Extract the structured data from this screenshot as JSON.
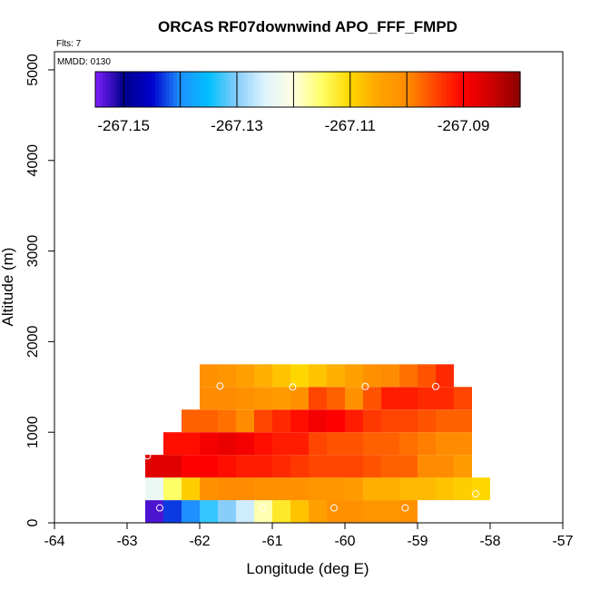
{
  "chart_data": {
    "type": "heatmap",
    "title": "ORCAS RF07downwind APO_FFF_FMPD",
    "note_flights": "Flts: 7",
    "note_mmdd": "MMDD: 0130",
    "xlabel": "Longitude (deg E)",
    "ylabel": "Altitude (m)",
    "xlim": [
      -64,
      -57
    ],
    "ylim": [
      0,
      5200
    ],
    "x_ticks": [
      -64,
      -63,
      -62,
      -61,
      -60,
      -59,
      -58,
      -57
    ],
    "x_tick_labels": [
      "-64",
      "-63",
      "-62",
      "-61",
      "-60",
      "-59",
      "-58",
      "-57"
    ],
    "y_ticks": [
      0,
      1000,
      2000,
      3000,
      4000,
      5000
    ],
    "y_tick_labels": [
      "0",
      "1000",
      "2000",
      "3000",
      "4000",
      "5000"
    ],
    "grid": false,
    "colorbar": {
      "min": -267.155,
      "max": -267.08,
      "ticks": [
        -267.15,
        -267.13,
        -267.11,
        -267.09
      ],
      "tick_labels": [
        "-267.15",
        "-267.13",
        "-267.11",
        "-267.09"
      ],
      "boundaries": [
        -267.15,
        -267.14,
        -267.13,
        -267.12,
        -267.11,
        -267.1,
        -267.09,
        -267.08
      ],
      "colors": [
        "#7f1fff",
        "#00008b",
        "#0000cd",
        "#1e90ff",
        "#00bfff",
        "#87cefa",
        "#e0f4ff",
        "#ffffe0",
        "#ffff66",
        "#ffd700",
        "#ffa500",
        "#ff8c00",
        "#ff4500",
        "#ff0000",
        "#cd0000",
        "#8b0000"
      ]
    },
    "cell_width_deg": 0.25,
    "cell_height_m": 250,
    "rows": [
      {
        "alt0": 0,
        "lon0": -62.75,
        "values": [
          -267.153,
          -267.143,
          -267.14,
          -267.133,
          -267.13,
          -267.126,
          -267.118,
          -267.112,
          -267.108,
          -267.104,
          -267.101,
          -267.101,
          -267.102,
          -267.102,
          -267.101
        ]
      },
      {
        "alt0": 250,
        "lon0": -62.75,
        "values": [
          -267.123,
          -267.115,
          -267.109,
          -267.101,
          -267.1,
          -267.1,
          -267.101,
          -267.101,
          -267.101,
          -267.102,
          -267.102,
          -267.103,
          -267.106,
          -267.106,
          -267.107,
          -267.107,
          -267.108,
          -267.109,
          -267.11
        ]
      },
      {
        "alt0": 500,
        "lon0": -62.75,
        "values": [
          -267.087,
          -267.087,
          -267.09,
          -267.09,
          -267.091,
          -267.092,
          -267.092,
          -267.093,
          -267.094,
          -267.095,
          -267.095,
          -267.095,
          -267.096,
          -267.097,
          -267.097,
          -267.1,
          -267.1,
          -267.103
        ]
      },
      {
        "alt0": 750,
        "lon0": -62.5,
        "values": [
          -267.091,
          -267.091,
          -267.089,
          -267.088,
          -267.089,
          -267.091,
          -267.092,
          -267.092,
          -267.095,
          -267.096,
          -267.096,
          -267.097,
          -267.097,
          -267.098,
          -267.099,
          -267.1,
          -267.1
        ]
      },
      {
        "alt0": 1000,
        "lon0": -62.25,
        "values": [
          -267.097,
          -267.097,
          -267.098,
          -267.1,
          -267.095,
          -267.093,
          -267.091,
          -267.089,
          -267.09,
          -267.092,
          -267.094,
          -267.095,
          -267.095,
          -267.096,
          -267.097,
          -267.097
        ]
      },
      {
        "alt0": 1250,
        "lon0": -62.0,
        "values": [
          -267.1,
          -267.1,
          -267.101,
          -267.102,
          -267.103,
          -267.101,
          -267.095,
          -267.097,
          -267.101,
          -267.096,
          -267.092,
          -267.092,
          -267.093,
          -267.093,
          -267.095
        ]
      },
      {
        "alt0": 1500,
        "lon0": -62.0,
        "values": [
          -267.101,
          -267.102,
          -267.104,
          -267.106,
          -267.108,
          -267.11,
          -267.108,
          -267.106,
          -267.104,
          -267.101,
          -267.1,
          -267.098,
          -267.096,
          -267.093
        ]
      }
    ],
    "markers": [
      {
        "lon": -62.55,
        "alt": 165
      },
      {
        "lon": -61.13,
        "alt": 165
      },
      {
        "lon": -60.15,
        "alt": 165
      },
      {
        "lon": -59.17,
        "alt": 165
      },
      {
        "lon": -58.2,
        "alt": 320
      },
      {
        "lon": -62.72,
        "alt": 740
      },
      {
        "lon": -61.72,
        "alt": 1510
      },
      {
        "lon": -60.72,
        "alt": 1500
      },
      {
        "lon": -59.72,
        "alt": 1505
      },
      {
        "lon": -58.75,
        "alt": 1505
      }
    ]
  }
}
